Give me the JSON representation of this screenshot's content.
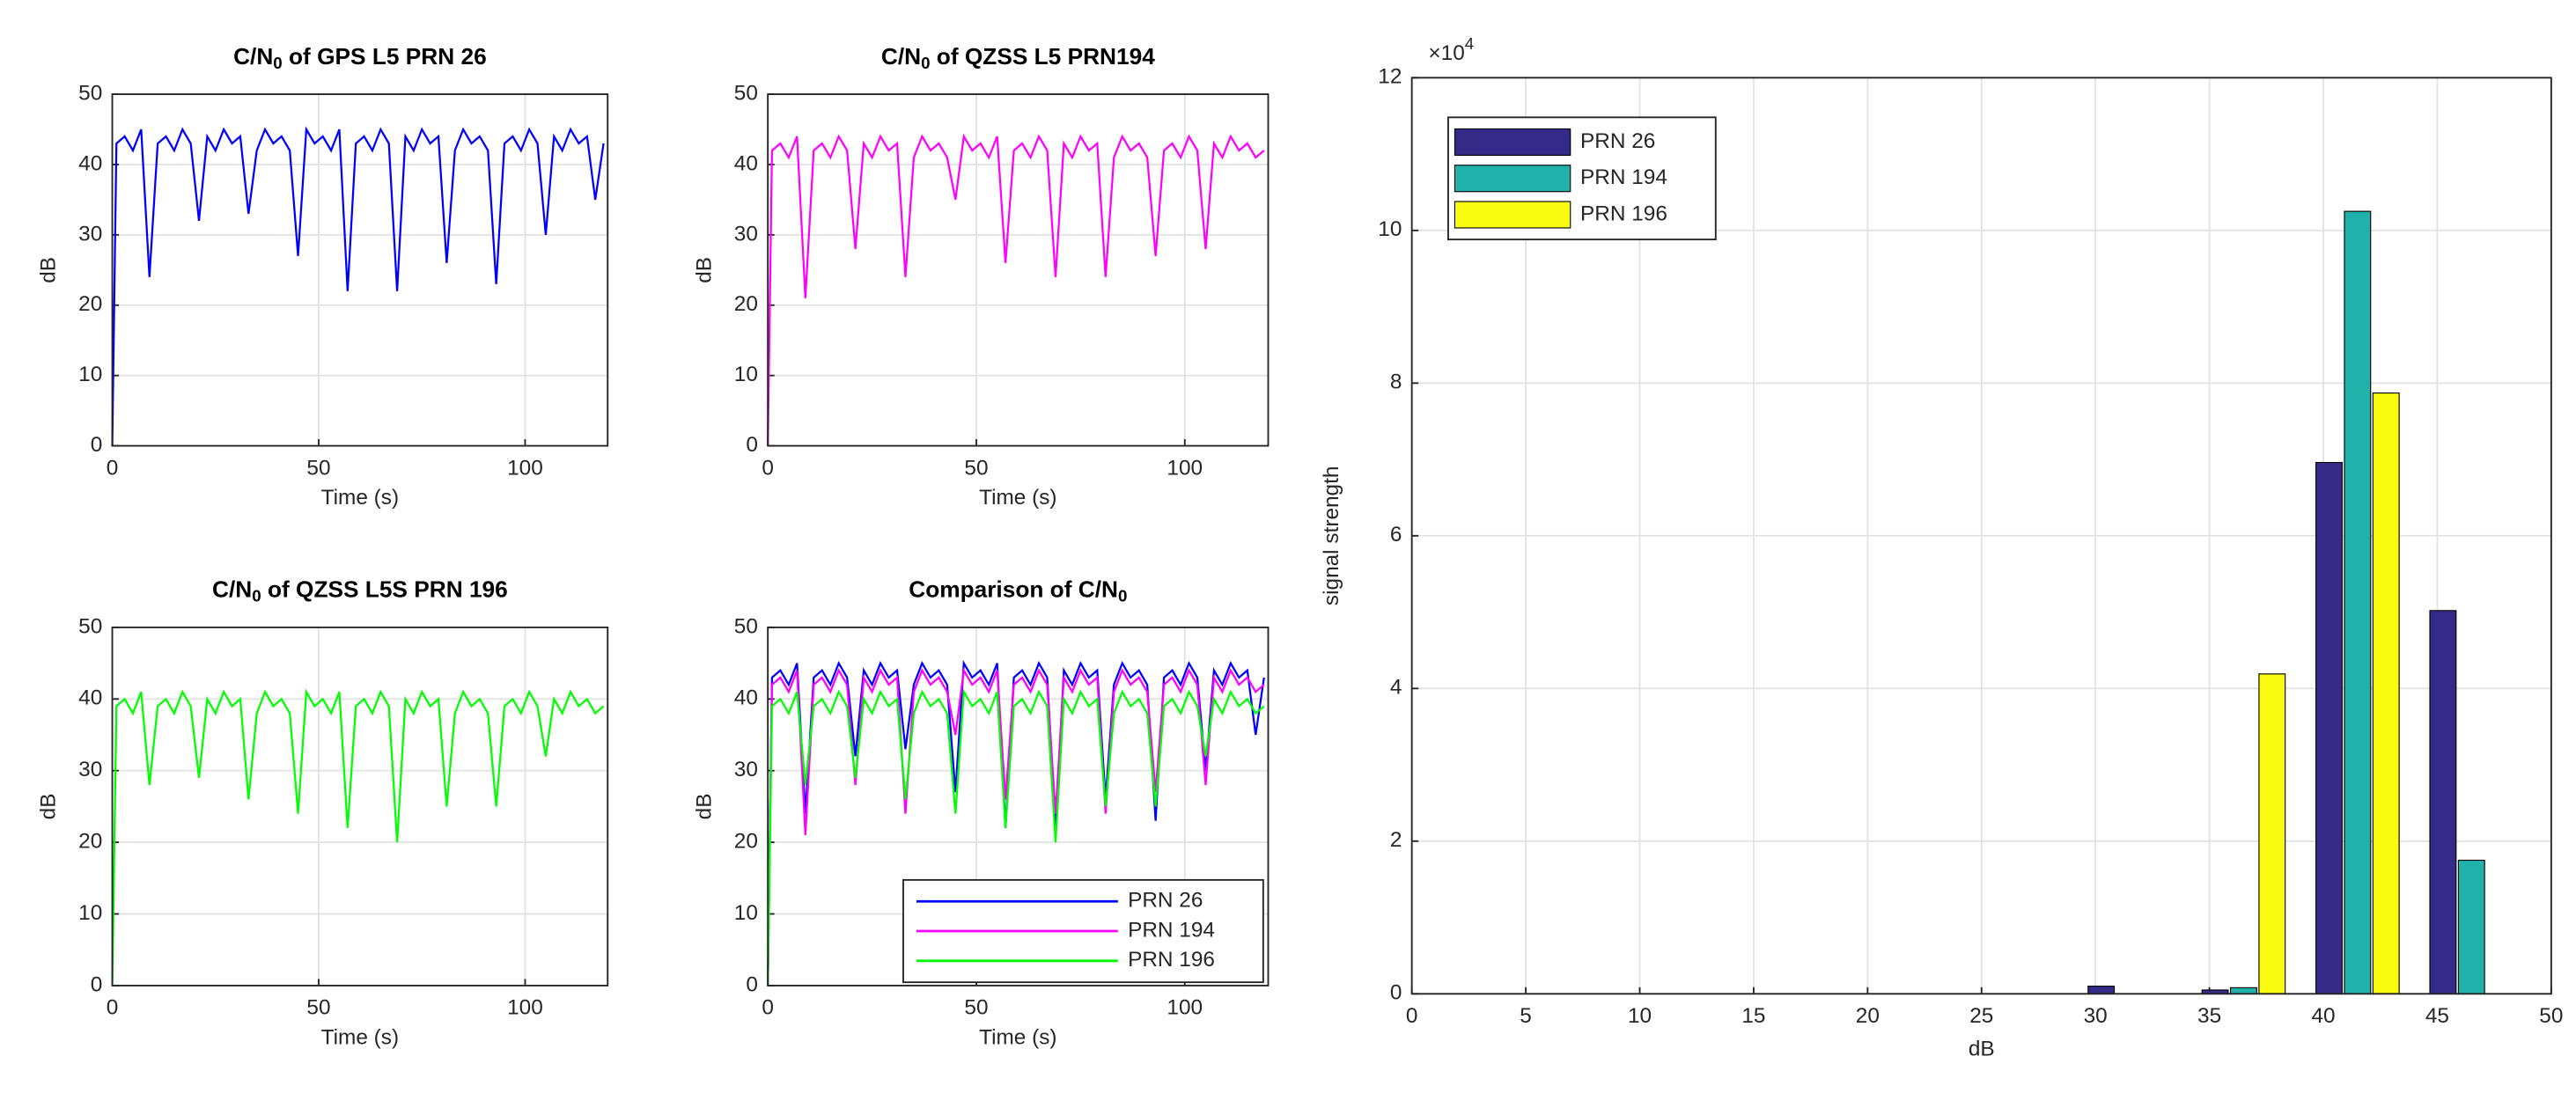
{
  "chart_data": [
    {
      "type": "line",
      "title": [
        "C/N",
        "0",
        " of GPS L5 PRN 26"
      ],
      "xlabel": "Time (s)",
      "ylabel": "dB",
      "x": [
        0,
        1,
        3,
        5,
        7,
        9,
        11,
        13,
        15,
        17,
        19,
        21,
        23,
        25,
        27,
        29,
        31,
        33,
        35,
        37,
        39,
        41,
        43,
        45,
        47,
        49,
        51,
        53,
        55,
        57,
        59,
        61,
        63,
        65,
        67,
        69,
        71,
        73,
        75,
        77,
        79,
        81,
        83,
        85,
        87,
        89,
        91,
        93,
        95,
        97,
        99,
        101,
        103,
        105,
        107,
        109,
        111,
        113,
        115,
        117,
        119
      ],
      "series": [
        {
          "name": "PRN 26",
          "color": "#0000ff",
          "values": [
            0,
            43,
            44,
            42,
            45,
            24,
            43,
            44,
            42,
            45,
            43,
            32,
            44,
            42,
            45,
            43,
            44,
            33,
            42,
            45,
            43,
            44,
            42,
            27,
            45,
            43,
            44,
            42,
            45,
            22,
            43,
            44,
            42,
            45,
            43,
            22,
            44,
            42,
            45,
            43,
            44,
            26,
            42,
            45,
            43,
            44,
            42,
            23,
            43,
            44,
            42,
            45,
            43,
            30,
            44,
            42,
            45,
            43,
            44,
            35,
            43
          ]
        }
      ],
      "xlim": [
        0,
        120
      ],
      "ylim": [
        0,
        50
      ],
      "xticks": [
        0,
        50,
        100
      ],
      "yticks": [
        0,
        10,
        20,
        30,
        40,
        50
      ],
      "grid": true
    },
    {
      "type": "line",
      "title": [
        "C/N",
        "0",
        " of QZSS L5 PRN194"
      ],
      "xlabel": "Time (s)",
      "ylabel": "dB",
      "x": [
        0,
        1,
        3,
        5,
        7,
        9,
        11,
        13,
        15,
        17,
        19,
        21,
        23,
        25,
        27,
        29,
        31,
        33,
        35,
        37,
        39,
        41,
        43,
        45,
        47,
        49,
        51,
        53,
        55,
        57,
        59,
        61,
        63,
        65,
        67,
        69,
        71,
        73,
        75,
        77,
        79,
        81,
        83,
        85,
        87,
        89,
        91,
        93,
        95,
        97,
        99,
        101,
        103,
        105,
        107,
        109,
        111,
        113,
        115,
        117,
        119
      ],
      "series": [
        {
          "name": "PRN 194",
          "color": "#ff00ff",
          "values": [
            0,
            42,
            43,
            41,
            44,
            21,
            42,
            43,
            41,
            44,
            42,
            28,
            43,
            41,
            44,
            42,
            43,
            24,
            41,
            44,
            42,
            43,
            41,
            35,
            44,
            42,
            43,
            41,
            44,
            26,
            42,
            43,
            41,
            44,
            42,
            24,
            43,
            41,
            44,
            42,
            43,
            24,
            41,
            44,
            42,
            43,
            41,
            27,
            42,
            43,
            41,
            44,
            42,
            28,
            43,
            41,
            44,
            42,
            43,
            41,
            42
          ]
        }
      ],
      "xlim": [
        0,
        120
      ],
      "ylim": [
        0,
        50
      ],
      "xticks": [
        0,
        50,
        100
      ],
      "yticks": [
        0,
        10,
        20,
        30,
        40,
        50
      ],
      "grid": true
    },
    {
      "type": "line",
      "title": [
        "C/N",
        "0",
        " of QZSS L5S PRN 196"
      ],
      "xlabel": "Time (s)",
      "ylabel": "dB",
      "x": [
        0,
        1,
        3,
        5,
        7,
        9,
        11,
        13,
        15,
        17,
        19,
        21,
        23,
        25,
        27,
        29,
        31,
        33,
        35,
        37,
        39,
        41,
        43,
        45,
        47,
        49,
        51,
        53,
        55,
        57,
        59,
        61,
        63,
        65,
        67,
        69,
        71,
        73,
        75,
        77,
        79,
        81,
        83,
        85,
        87,
        89,
        91,
        93,
        95,
        97,
        99,
        101,
        103,
        105,
        107,
        109,
        111,
        113,
        115,
        117,
        119
      ],
      "series": [
        {
          "name": "PRN 196",
          "color": "#00ff00",
          "values": [
            0,
            39,
            40,
            38,
            41,
            28,
            39,
            40,
            38,
            41,
            39,
            29,
            40,
            38,
            41,
            39,
            40,
            26,
            38,
            41,
            39,
            40,
            38,
            24,
            41,
            39,
            40,
            38,
            41,
            22,
            39,
            40,
            38,
            41,
            39,
            20,
            40,
            38,
            41,
            39,
            40,
            25,
            38,
            41,
            39,
            40,
            38,
            25,
            39,
            40,
            38,
            41,
            39,
            32,
            40,
            38,
            41,
            39,
            40,
            38,
            39
          ]
        }
      ],
      "xlim": [
        0,
        120
      ],
      "ylim": [
        0,
        50
      ],
      "xticks": [
        0,
        50,
        100
      ],
      "yticks": [
        0,
        10,
        20,
        30,
        40,
        50
      ],
      "grid": true
    },
    {
      "type": "line",
      "title": [
        "Comparison of C/N",
        "0"
      ],
      "xlabel": "Time (s)",
      "ylabel": "dB",
      "x": [
        0,
        1,
        3,
        5,
        7,
        9,
        11,
        13,
        15,
        17,
        19,
        21,
        23,
        25,
        27,
        29,
        31,
        33,
        35,
        37,
        39,
        41,
        43,
        45,
        47,
        49,
        51,
        53,
        55,
        57,
        59,
        61,
        63,
        65,
        67,
        69,
        71,
        73,
        75,
        77,
        79,
        81,
        83,
        85,
        87,
        89,
        91,
        93,
        95,
        97,
        99,
        101,
        103,
        105,
        107,
        109,
        111,
        113,
        115,
        117,
        119
      ],
      "series": [
        {
          "name": "PRN 26",
          "color": "#0000ff",
          "values": [
            0,
            43,
            44,
            42,
            45,
            24,
            43,
            44,
            42,
            45,
            43,
            32,
            44,
            42,
            45,
            43,
            44,
            33,
            42,
            45,
            43,
            44,
            42,
            27,
            45,
            43,
            44,
            42,
            45,
            22,
            43,
            44,
            42,
            45,
            43,
            22,
            44,
            42,
            45,
            43,
            44,
            26,
            42,
            45,
            43,
            44,
            42,
            23,
            43,
            44,
            42,
            45,
            43,
            30,
            44,
            42,
            45,
            43,
            44,
            35,
            43
          ]
        },
        {
          "name": "PRN 194",
          "color": "#ff00ff",
          "values": [
            0,
            42,
            43,
            41,
            44,
            21,
            42,
            43,
            41,
            44,
            42,
            28,
            43,
            41,
            44,
            42,
            43,
            24,
            41,
            44,
            42,
            43,
            41,
            35,
            44,
            42,
            43,
            41,
            44,
            26,
            42,
            43,
            41,
            44,
            42,
            24,
            43,
            41,
            44,
            42,
            43,
            24,
            41,
            44,
            42,
            43,
            41,
            27,
            42,
            43,
            41,
            44,
            42,
            28,
            43,
            41,
            44,
            42,
            43,
            41,
            42
          ]
        },
        {
          "name": "PRN 196",
          "color": "#00ff00",
          "values": [
            0,
            39,
            40,
            38,
            41,
            28,
            39,
            40,
            38,
            41,
            39,
            29,
            40,
            38,
            41,
            39,
            40,
            26,
            38,
            41,
            39,
            40,
            38,
            24,
            41,
            39,
            40,
            38,
            41,
            22,
            39,
            40,
            38,
            41,
            39,
            20,
            40,
            38,
            41,
            39,
            40,
            25,
            38,
            41,
            39,
            40,
            38,
            25,
            39,
            40,
            38,
            41,
            39,
            32,
            40,
            38,
            41,
            39,
            40,
            38,
            39
          ]
        }
      ],
      "xlim": [
        0,
        120
      ],
      "ylim": [
        0,
        50
      ],
      "xticks": [
        0,
        50,
        100
      ],
      "yticks": [
        0,
        10,
        20,
        30,
        40,
        50
      ],
      "grid": true,
      "legend": "lower right"
    },
    {
      "type": "bar",
      "xlabel": "dB",
      "ylabel": "signal strength",
      "scale_label": [
        "×10",
        "4"
      ],
      "x": [
        1.5,
        6.5,
        11.5,
        16.5,
        21.5,
        26.5,
        31.5,
        36.5,
        41.5,
        46.5
      ],
      "series": [
        {
          "name": "PRN 26",
          "color": "#352a87",
          "values": [
            0,
            0,
            0,
            0,
            0,
            0,
            1000,
            500,
            69600,
            50200
          ]
        },
        {
          "name": "PRN 194",
          "color": "#20b2aa",
          "values": [
            0,
            0,
            0,
            0,
            0,
            0,
            0,
            800,
            102500,
            17500
          ]
        },
        {
          "name": "PRN 196",
          "color": "#f9fb0e",
          "values": [
            0,
            0,
            0,
            0,
            0,
            0,
            0,
            41900,
            78700,
            0
          ]
        }
      ],
      "xlim": [
        0,
        50
      ],
      "ylim": [
        0,
        120000
      ],
      "xticks": [
        0,
        5,
        10,
        15,
        20,
        25,
        30,
        35,
        40,
        45,
        50
      ],
      "yticks": [
        0,
        {
          "value": 20000,
          "label": "2"
        },
        {
          "value": 40000,
          "label": "4"
        },
        {
          "value": 60000,
          "label": "6"
        },
        {
          "value": 80000,
          "label": "8"
        },
        {
          "value": 100000,
          "label": "10"
        },
        {
          "value": 120000,
          "label": "12"
        }
      ],
      "grid": true,
      "legend": "upper left"
    }
  ]
}
